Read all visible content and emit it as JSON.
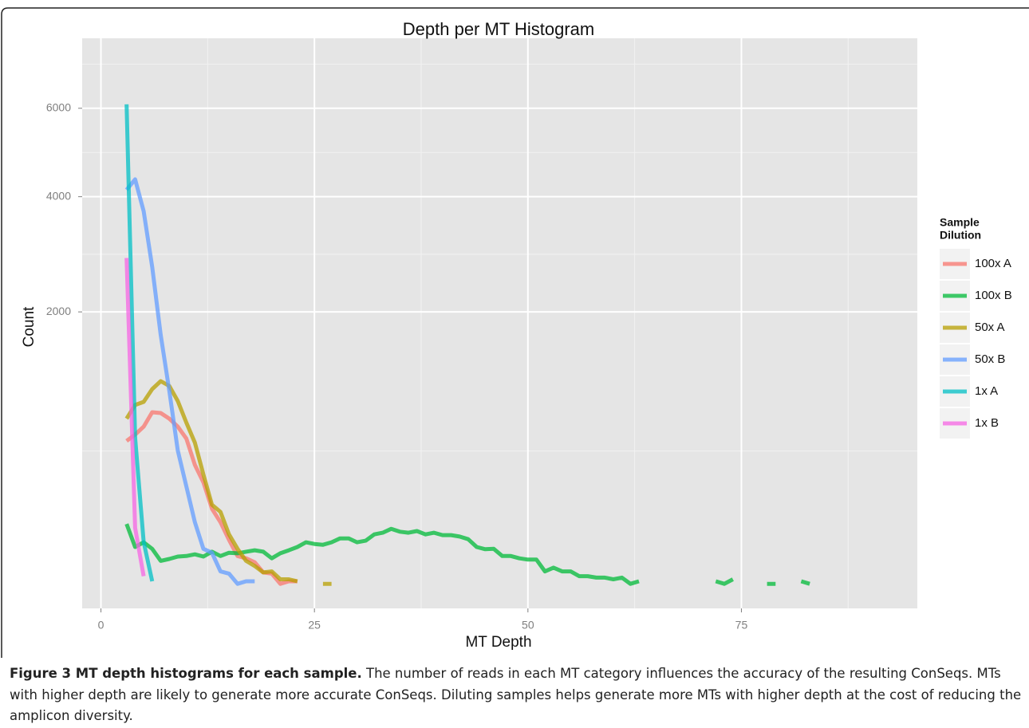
{
  "chart_data": {
    "type": "line",
    "title": "Depth per MT Histogram",
    "x_label": "MT Depth",
    "y_label": "Count",
    "yscale": "sqrt",
    "xlim": [
      -2.2,
      95.6
    ],
    "ylim": [
      0,
      7870
    ],
    "xticks": [
      0,
      25,
      50,
      75
    ],
    "yticks": [
      2000,
      4000,
      6000
    ],
    "grid": true,
    "legend_title": [
      "Sample",
      "Dilution"
    ],
    "legend_position": "right",
    "series": [
      {
        "name": "100x A",
        "color": "#F8766D",
        "x": [
          3,
          4,
          5,
          6,
          7,
          8,
          9,
          10,
          11,
          12,
          13,
          14,
          15,
          16,
          17,
          18,
          19,
          20,
          21,
          22,
          23
        ],
        "values": [
          575,
          625,
          690,
          817,
          810,
          760,
          690,
          593,
          405,
          300,
          171,
          119,
          65,
          30,
          26,
          20,
          8,
          7,
          1,
          2,
          2
        ]
      },
      {
        "name": "100x B",
        "color": "#00BA38",
        "x": [
          3,
          4,
          5,
          6,
          7,
          8,
          9,
          10,
          11,
          12,
          13,
          14,
          15,
          16,
          17,
          18,
          19,
          20,
          21,
          22,
          23,
          24,
          25,
          26,
          27,
          28,
          29,
          30,
          31,
          32,
          33,
          34,
          35,
          36,
          37,
          38,
          39,
          40,
          41,
          42,
          43,
          44,
          45,
          46,
          47,
          48,
          49,
          50,
          51,
          52,
          53,
          54,
          55,
          56,
          57,
          58,
          59,
          60,
          61,
          62,
          63,
          64,
          65,
          66,
          67,
          68,
          69,
          70,
          71,
          72,
          73,
          74,
          75,
          76,
          77,
          78,
          79,
          80,
          81,
          82,
          83
        ],
        "values": [
          113,
          48,
          59,
          44,
          22,
          25,
          29,
          30,
          33,
          29,
          38,
          30,
          36,
          35,
          38,
          41,
          38,
          26,
          35,
          41,
          48,
          59,
          55,
          53,
          59,
          69,
          69,
          59,
          63,
          80,
          85,
          97,
          88,
          85,
          90,
          80,
          85,
          78,
          78,
          74,
          67,
          48,
          43,
          44,
          30,
          30,
          26,
          24,
          24,
          9,
          13,
          9,
          9,
          5,
          5,
          4,
          4,
          3,
          4,
          1,
          2,
          null,
          null,
          null,
          null,
          null,
          null,
          null,
          null,
          2,
          1,
          3,
          null,
          null,
          null,
          1,
          1,
          null,
          null,
          2,
          1
        ]
      },
      {
        "name": "50x A",
        "color": "#B79F00",
        "x": [
          3,
          4,
          5,
          6,
          7,
          8,
          9,
          10,
          11,
          12,
          13,
          14,
          15,
          16,
          17,
          18,
          19,
          20,
          21,
          22,
          23,
          24,
          25,
          26,
          27
        ],
        "values": [
          760,
          885,
          915,
          1044,
          1128,
          1077,
          923,
          725,
          562,
          345,
          188,
          158,
          80,
          44,
          22,
          15,
          8,
          9,
          3,
          3,
          2,
          null,
          null,
          1,
          1
        ]
      },
      {
        "name": "50x B",
        "color": "#619CFF",
        "x": [
          3,
          4,
          5,
          6,
          7,
          8,
          9,
          10,
          11,
          12,
          13,
          14,
          15,
          16,
          17,
          18
        ],
        "values": [
          4140,
          4360,
          3710,
          2700,
          1680,
          1030,
          503,
          278,
          119,
          44,
          36,
          9,
          7,
          1,
          2,
          2
        ]
      },
      {
        "name": "1x A",
        "color": "#00BFC4",
        "x": [
          3,
          4,
          5,
          6
        ],
        "values": [
          6100,
          600,
          60,
          2
        ]
      },
      {
        "name": "1x B",
        "color": "#F564E3",
        "x": [
          3,
          4,
          5
        ],
        "values": [
          2850,
          100,
          5
        ]
      }
    ]
  },
  "caption": {
    "label": "Figure 3 MT depth histograms for each sample.",
    "text": "The number of reads in each MT category influences the accuracy of the resulting ConSeqs. MTs with higher depth are likely to generate more accurate ConSeqs. Diluting samples helps generate more MTs with higher depth at the cost of reducing the amplicon diversity."
  }
}
